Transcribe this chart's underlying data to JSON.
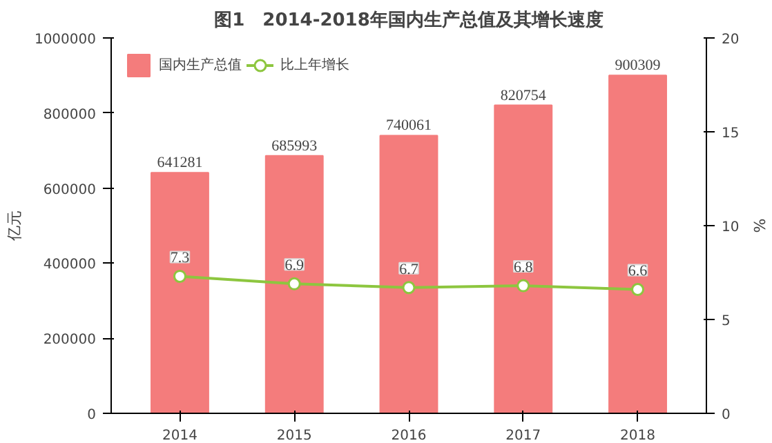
{
  "chart_data": {
    "type": "bar",
    "title": "图1　2014-2018年国内生产总值及其增长速度",
    "ylabel": "亿元",
    "y2label": "%",
    "categories": [
      "2014",
      "2015",
      "2016",
      "2017",
      "2018"
    ],
    "series": [
      {
        "name": "国内生产总值",
        "color": "#f47c7c",
        "values": [
          641281,
          685993,
          740061,
          820754,
          900309
        ]
      },
      {
        "name": "比上年增长",
        "type": "line",
        "axis": "y2",
        "color": "#8dc63f",
        "values": [
          7.3,
          6.9,
          6.7,
          6.8,
          6.6
        ]
      }
    ],
    "ylim": [
      0,
      1000000
    ],
    "yticks": [
      0,
      200000,
      400000,
      600000,
      800000,
      1000000
    ],
    "y2lim": [
      0,
      20
    ],
    "y2ticks": [
      0,
      5,
      10,
      15,
      20
    ],
    "data_labels": true,
    "legend": "top left",
    "marker": "circle",
    "grid": false
  }
}
